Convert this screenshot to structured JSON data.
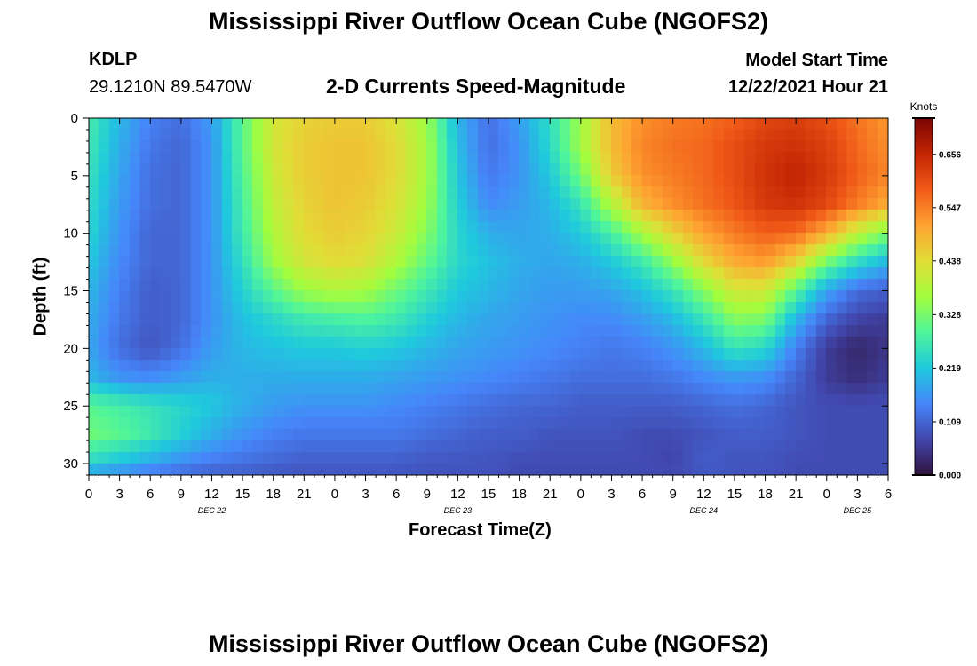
{
  "page": {
    "title": "Mississippi River Outflow Ocean Cube (NGOFS2)",
    "station_id": "KDLP",
    "coords": "29.1210N  89.5470W",
    "subtitle": "2-D Currents Speed-Magnitude",
    "model_start_label": "Model Start Time",
    "model_start_value": "12/22/2021 Hour 21",
    "second_title": "Mississippi River Outflow Ocean Cube (NGOFS2)"
  },
  "chart_data": {
    "type": "heatmap",
    "xlabel": "Forecast Time(Z)",
    "ylabel": "Depth (ft)",
    "x_tick_labels": [
      "0",
      "3",
      "6",
      "9",
      "12",
      "15",
      "18",
      "21",
      "0",
      "3",
      "6",
      "9",
      "12",
      "15",
      "18",
      "21",
      "0",
      "3",
      "6",
      "9",
      "12",
      "15",
      "18",
      "21",
      "0",
      "3",
      "6"
    ],
    "x_range_hours": [
      0,
      78
    ],
    "date_labels": [
      {
        "label": "DEC 22",
        "hour": 12
      },
      {
        "label": "DEC 23",
        "hour": 36
      },
      {
        "label": "DEC 24",
        "hour": 60
      },
      {
        "label": "DEC 25",
        "hour": 75
      }
    ],
    "y_tick_labels": [
      "0",
      "5",
      "10",
      "15",
      "20",
      "25",
      "30"
    ],
    "y_range": [
      0,
      31
    ],
    "y_inverted": true,
    "colorbar": {
      "title": "Knots",
      "tick_labels": [
        "0.000",
        "0.109",
        "0.219",
        "0.328",
        "0.438",
        "0.547",
        "0.656"
      ],
      "range": [
        0,
        0.73
      ],
      "colormap": [
        "#30123b",
        "#4146ac",
        "#4686fa",
        "#1fc9dd",
        "#4ff59b",
        "#a3fd3d",
        "#e1dd37",
        "#fea331",
        "#f05a18",
        "#c32503",
        "#7a0403"
      ]
    },
    "speed_field": {
      "units": "knots",
      "x_hours": [
        0,
        3,
        6,
        9,
        12,
        15,
        18,
        21,
        24,
        27,
        30,
        33,
        36,
        39,
        42,
        45,
        48,
        51,
        54,
        57,
        60,
        63,
        66,
        69,
        72,
        75,
        78
      ],
      "depths_ft": [
        0,
        2.5,
        5,
        7.5,
        10,
        12.5,
        15,
        17.5,
        20,
        22.5,
        25,
        27.5,
        30,
        31
      ],
      "values": [
        [
          0.28,
          0.2,
          0.14,
          0.12,
          0.17,
          0.3,
          0.42,
          0.45,
          0.46,
          0.46,
          0.43,
          0.36,
          0.2,
          0.12,
          0.17,
          0.25,
          0.36,
          0.48,
          0.53,
          0.55,
          0.56,
          0.58,
          0.61,
          0.62,
          0.6,
          0.56,
          0.52
        ],
        [
          0.27,
          0.19,
          0.13,
          0.11,
          0.16,
          0.3,
          0.42,
          0.46,
          0.47,
          0.47,
          0.44,
          0.37,
          0.21,
          0.12,
          0.16,
          0.24,
          0.36,
          0.48,
          0.54,
          0.56,
          0.57,
          0.6,
          0.63,
          0.64,
          0.62,
          0.57,
          0.53
        ],
        [
          0.26,
          0.18,
          0.12,
          0.11,
          0.16,
          0.29,
          0.41,
          0.46,
          0.47,
          0.47,
          0.44,
          0.37,
          0.22,
          0.13,
          0.16,
          0.22,
          0.32,
          0.46,
          0.53,
          0.55,
          0.57,
          0.6,
          0.64,
          0.66,
          0.63,
          0.58,
          0.54
        ],
        [
          0.25,
          0.17,
          0.12,
          0.11,
          0.16,
          0.28,
          0.4,
          0.45,
          0.47,
          0.46,
          0.43,
          0.36,
          0.23,
          0.15,
          0.17,
          0.2,
          0.26,
          0.38,
          0.49,
          0.53,
          0.56,
          0.59,
          0.63,
          0.64,
          0.61,
          0.55,
          0.5
        ],
        [
          0.24,
          0.16,
          0.11,
          0.11,
          0.16,
          0.27,
          0.38,
          0.44,
          0.46,
          0.45,
          0.41,
          0.34,
          0.24,
          0.19,
          0.18,
          0.19,
          0.22,
          0.28,
          0.37,
          0.45,
          0.51,
          0.55,
          0.58,
          0.57,
          0.5,
          0.4,
          0.33
        ],
        [
          0.22,
          0.15,
          0.11,
          0.11,
          0.16,
          0.25,
          0.36,
          0.42,
          0.44,
          0.43,
          0.38,
          0.31,
          0.24,
          0.21,
          0.19,
          0.18,
          0.19,
          0.22,
          0.27,
          0.35,
          0.44,
          0.5,
          0.52,
          0.45,
          0.33,
          0.25,
          0.2
        ],
        [
          0.2,
          0.14,
          0.1,
          0.11,
          0.16,
          0.23,
          0.3,
          0.36,
          0.38,
          0.37,
          0.32,
          0.27,
          0.22,
          0.2,
          0.18,
          0.17,
          0.17,
          0.18,
          0.21,
          0.26,
          0.34,
          0.42,
          0.42,
          0.3,
          0.18,
          0.12,
          0.1
        ],
        [
          0.19,
          0.13,
          0.1,
          0.11,
          0.16,
          0.21,
          0.24,
          0.27,
          0.28,
          0.29,
          0.27,
          0.23,
          0.2,
          0.18,
          0.17,
          0.16,
          0.15,
          0.15,
          0.17,
          0.2,
          0.26,
          0.34,
          0.33,
          0.2,
          0.11,
          0.07,
          0.06
        ],
        [
          0.18,
          0.12,
          0.09,
          0.12,
          0.17,
          0.2,
          0.21,
          0.22,
          0.22,
          0.23,
          0.22,
          0.2,
          0.18,
          0.17,
          0.16,
          0.15,
          0.14,
          0.13,
          0.14,
          0.16,
          0.2,
          0.26,
          0.24,
          0.14,
          0.06,
          0.03,
          0.05
        ],
        [
          0.2,
          0.16,
          0.15,
          0.17,
          0.19,
          0.19,
          0.19,
          0.19,
          0.19,
          0.19,
          0.18,
          0.17,
          0.16,
          0.15,
          0.14,
          0.13,
          0.12,
          0.12,
          0.12,
          0.13,
          0.15,
          0.17,
          0.16,
          0.11,
          0.06,
          0.04,
          0.06
        ],
        [
          0.3,
          0.28,
          0.26,
          0.24,
          0.22,
          0.19,
          0.17,
          0.16,
          0.16,
          0.16,
          0.15,
          0.14,
          0.13,
          0.12,
          0.11,
          0.11,
          0.1,
          0.1,
          0.1,
          0.1,
          0.11,
          0.12,
          0.11,
          0.09,
          0.08,
          0.08,
          0.08
        ],
        [
          0.32,
          0.3,
          0.27,
          0.23,
          0.19,
          0.16,
          0.14,
          0.13,
          0.13,
          0.13,
          0.13,
          0.12,
          0.11,
          0.1,
          0.1,
          0.09,
          0.09,
          0.09,
          0.08,
          0.08,
          0.09,
          0.1,
          0.1,
          0.09,
          0.08,
          0.08,
          0.08
        ],
        [
          0.24,
          0.21,
          0.18,
          0.15,
          0.13,
          0.12,
          0.11,
          0.1,
          0.1,
          0.1,
          0.1,
          0.09,
          0.09,
          0.09,
          0.08,
          0.08,
          0.08,
          0.08,
          0.08,
          0.07,
          0.1,
          0.09,
          0.09,
          0.08,
          0.08,
          0.08,
          0.08
        ],
        [
          0.16,
          0.14,
          0.12,
          0.11,
          0.1,
          0.1,
          0.09,
          0.09,
          0.09,
          0.09,
          0.09,
          0.09,
          0.09,
          0.09,
          0.08,
          0.08,
          0.08,
          0.08,
          0.08,
          0.08,
          0.09,
          0.09,
          0.09,
          0.08,
          0.08,
          0.08,
          0.08
        ]
      ]
    }
  }
}
